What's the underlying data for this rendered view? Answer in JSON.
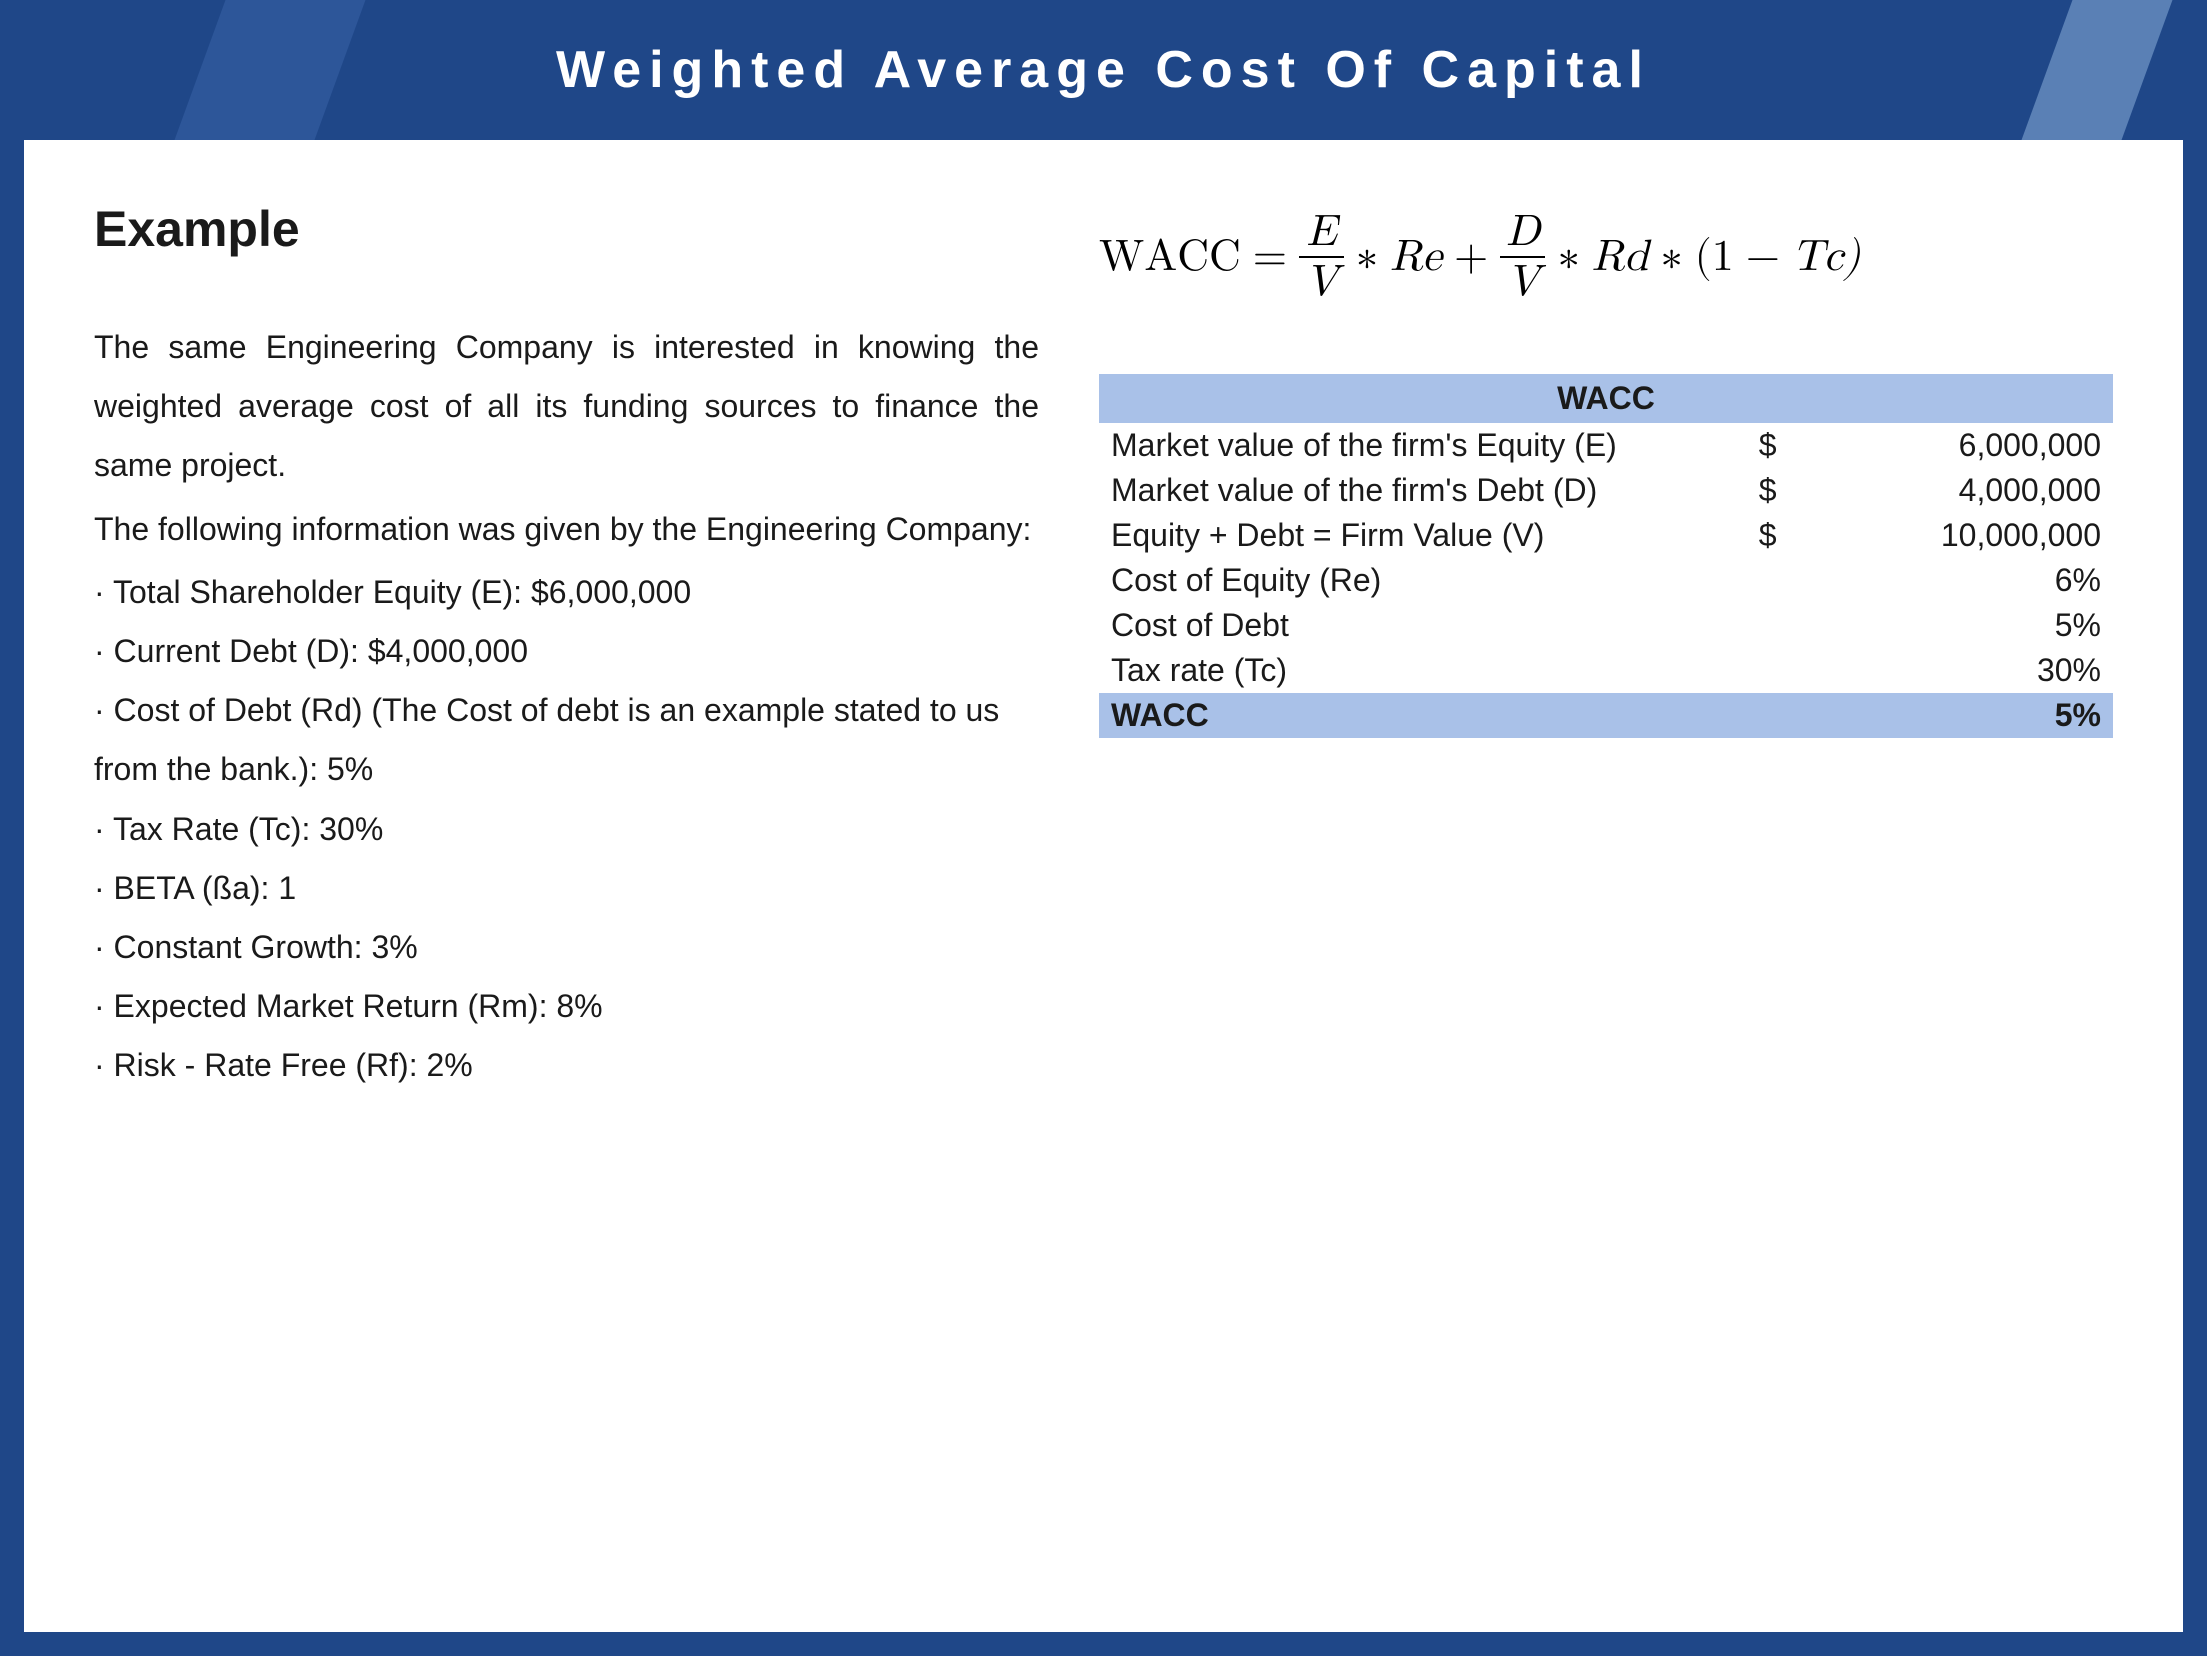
{
  "header": {
    "title": "Weighted Average Cost Of Capital",
    "bg_color": "#1f4788",
    "accent_left": "#2d5699",
    "accent_right": "#5a80b5",
    "title_color": "#ffffff",
    "title_fontsize": 52,
    "letter_spacing": 8
  },
  "section": {
    "heading": "Example",
    "para1": "The same Engineering Company is interested in knowing the weighted average cost of all its funding sources to finance the same project.",
    "para2": "The following information was given by the Engineering Company:",
    "bullets": [
      "· Total Shareholder Equity (E): $6,000,000",
      "· Current Debt (D): $4,000,000",
      "· Cost of Debt (Rd) (The Cost of debt is an example stated to us from the bank.): 5%",
      "· Tax Rate (Tc): 30%",
      "· BETA (ßa): 1",
      "· Constant Growth: 3%",
      "· Expected Market Return (Rm): 8%",
      "· Risk - Rate Free (Rf): 2%"
    ],
    "heading_fontsize": 50,
    "body_fontsize": 32,
    "text_color": "#1a1a1a"
  },
  "formula": {
    "lhs": "WACC",
    "eq": "=",
    "frac1_num": "E",
    "frac1_den": "V",
    "star": "∗",
    "re": "Re",
    "plus": "+",
    "frac2_num": "D",
    "frac2_den": "V",
    "rd": "Rd",
    "open": "(1",
    "minus": "−",
    "tc": "Tc)",
    "fontsize": 44,
    "color": "#000000"
  },
  "table": {
    "type": "table",
    "header": "WACC",
    "header_bg": "#a9c1e8",
    "result_bg": "#a9c1e8",
    "fontsize": 32,
    "columns": [
      "label",
      "currency_symbol",
      "value"
    ],
    "rows": [
      {
        "label": "Market value of the firm's Equity (E)",
        "sym": "$",
        "value": "6,000,000"
      },
      {
        "label": "Market value of the firm's Debt (D)",
        "sym": "$",
        "value": "4,000,000"
      },
      {
        "label": "Equity + Debt = Firm Value (V)",
        "sym": "$",
        "value": "10,000,000"
      },
      {
        "label": "Cost of Equity (Re)",
        "sym": "",
        "value": "6%"
      },
      {
        "label": "Cost of Debt",
        "sym": "",
        "value": "5%"
      },
      {
        "label": "Tax rate (Tc)",
        "sym": "",
        "value": "30%"
      }
    ],
    "result": {
      "label": "WACC",
      "sym": "",
      "value": "5%"
    }
  }
}
